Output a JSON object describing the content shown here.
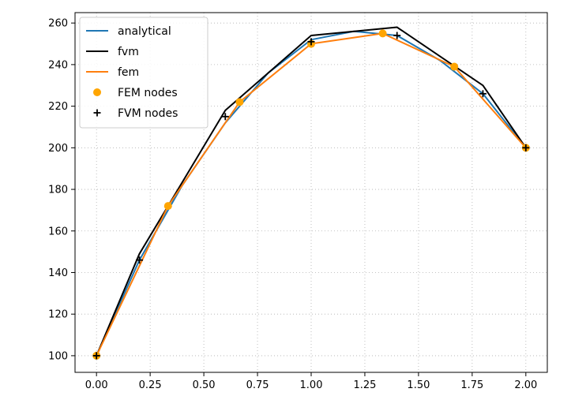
{
  "chart_data": {
    "type": "line",
    "title": "",
    "xlabel": "",
    "ylabel": "",
    "xlim": [
      -0.1,
      2.1
    ],
    "ylim": [
      92,
      265
    ],
    "xticks": [
      0.0,
      0.25,
      0.5,
      0.75,
      1.0,
      1.25,
      1.5,
      1.75,
      2.0
    ],
    "xtick_labels": [
      "0.00",
      "0.25",
      "0.50",
      "0.75",
      "1.00",
      "1.25",
      "1.50",
      "1.75",
      "2.00"
    ],
    "yticks": [
      100,
      120,
      140,
      160,
      180,
      200,
      220,
      240,
      260
    ],
    "ytick_labels": [
      "100",
      "120",
      "140",
      "160",
      "180",
      "200",
      "220",
      "240",
      "260"
    ],
    "grid": true,
    "legend_position": "top-left",
    "series": [
      {
        "name": "analytical",
        "kind": "line",
        "color": "#1f77b4",
        "x": [
          0.0,
          0.2,
          0.4,
          0.6,
          0.8,
          1.0,
          1.2,
          1.4,
          1.6,
          1.8,
          2.0
        ],
        "y": [
          100,
          146,
          182,
          212,
          236,
          252,
          256,
          254,
          242,
          226,
          200
        ]
      },
      {
        "name": "fvm",
        "kind": "line",
        "color": "#000000",
        "x": [
          0.0,
          0.2,
          0.6,
          1.0,
          1.4,
          1.8,
          2.0
        ],
        "y": [
          100,
          149,
          218,
          254,
          258,
          230,
          200
        ]
      },
      {
        "name": "fem",
        "kind": "line",
        "color": "#ff7f0e",
        "x": [
          0.0,
          0.3333,
          0.6667,
          1.0,
          1.3333,
          1.6667,
          2.0
        ],
        "y": [
          100,
          172,
          222,
          250,
          255,
          239,
          200
        ]
      },
      {
        "name": "FEM nodes",
        "kind": "scatter-circle",
        "color": "#ffa500",
        "x": [
          0.0,
          0.3333,
          0.6667,
          1.0,
          1.3333,
          1.6667,
          2.0
        ],
        "y": [
          100,
          172,
          222,
          250,
          255,
          239,
          200
        ]
      },
      {
        "name": "FVM nodes",
        "kind": "scatter-plus",
        "color": "#000000",
        "x": [
          0.0,
          0.2,
          0.6,
          1.0,
          1.4,
          1.8,
          2.0
        ],
        "y": [
          100,
          146,
          215,
          251,
          254,
          226,
          200
        ]
      }
    ]
  }
}
